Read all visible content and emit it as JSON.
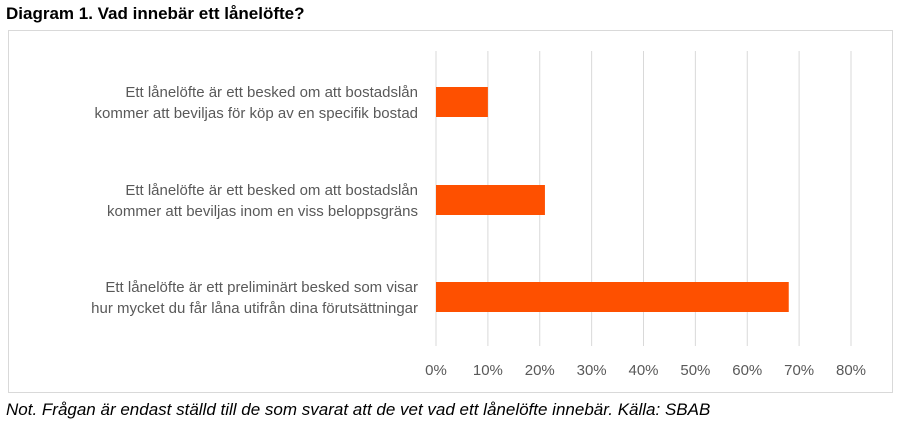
{
  "title": "Diagram 1. Vad innebär ett lånelöfte?",
  "note": "Not. Frågan är endast ställd till de som svarat att de vet vad ett lånelöfte innebär. Källa: SBAB",
  "chart_data": {
    "type": "bar",
    "orientation": "horizontal",
    "categories": [
      [
        "Ett lånelöfte är ett besked om att bostadslån",
        "kommer att beviljas för köp av en specifik bostad"
      ],
      [
        "Ett lånelöfte är ett besked om att bostadslån",
        "kommer att beviljas inom en viss beloppsgräns"
      ],
      [
        "Ett lånelöfte är ett preliminärt besked som visar",
        "hur mycket du får låna utifrån dina förutsättningar"
      ]
    ],
    "values": [
      10,
      21,
      68
    ],
    "xlim": [
      0,
      80
    ],
    "xticks": [
      0,
      10,
      20,
      30,
      40,
      50,
      60,
      70,
      80
    ],
    "tick_suffix": "%",
    "grid": true,
    "bar_color": "#fe5000",
    "grid_color": "#d9d9d9"
  }
}
